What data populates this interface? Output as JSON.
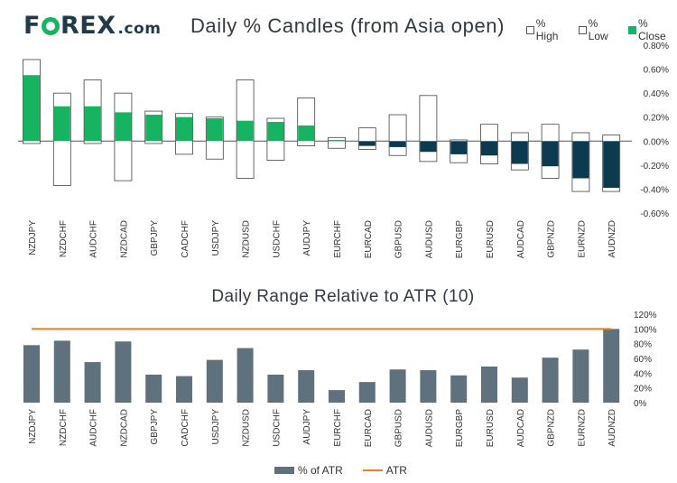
{
  "brand": {
    "logo_text_pre": "F",
    "logo_text_post": "REX",
    "logo_suffix": ".com"
  },
  "colors": {
    "green": "#16b460",
    "navy": "#0c3a4e",
    "bar": "#5f717c",
    "atr": "#f07f1e"
  },
  "legend_top": {
    "high": "% High",
    "low": "% Low",
    "close": "% Close"
  },
  "legend_bottom": {
    "bars": "% of ATR",
    "line": "ATR"
  },
  "chart_data": [
    {
      "type": "candlestick",
      "title": "Daily % Candles (from Asia open)",
      "categories": [
        "NZDJPY",
        "NZDCHF",
        "AUDCHF",
        "NZDCAD",
        "GBPJPY",
        "CADCHF",
        "USDJPY",
        "NZDUSD",
        "USDCHF",
        "AUDJPY",
        "EURCHF",
        "EURCAD",
        "GBPUSD",
        "AUDUSD",
        "EURGBP",
        "EURUSD",
        "AUDCAD",
        "GBPNZD",
        "EURNZD",
        "AUDNZD"
      ],
      "high": [
        0.68,
        0.4,
        0.51,
        0.4,
        0.25,
        0.23,
        0.2,
        0.51,
        0.19,
        0.36,
        0.03,
        0.11,
        0.22,
        0.38,
        0.01,
        0.14,
        0.07,
        0.14,
        0.07,
        0.05
      ],
      "low": [
        -0.02,
        -0.37,
        -0.02,
        -0.33,
        -0.02,
        -0.11,
        -0.15,
        -0.31,
        -0.16,
        -0.04,
        -0.06,
        -0.07,
        -0.12,
        -0.17,
        -0.18,
        -0.19,
        -0.24,
        -0.31,
        -0.42,
        -0.42
      ],
      "close": [
        0.55,
        0.29,
        0.29,
        0.24,
        0.22,
        0.2,
        0.19,
        0.17,
        0.16,
        0.13,
        0.01,
        -0.04,
        -0.05,
        -0.09,
        -0.11,
        -0.12,
        -0.19,
        -0.21,
        -0.31,
        -0.39
      ],
      "ylim": [
        -0.6,
        0.8
      ],
      "yticks": [
        "0.80%",
        "0.60%",
        "0.40%",
        "0.20%",
        "0.00%",
        "-0.20%",
        "-0.40%",
        "-0.60%"
      ],
      "ytick_values": [
        0.8,
        0.6,
        0.4,
        0.2,
        0,
        -0.2,
        -0.4,
        -0.6
      ]
    },
    {
      "type": "bar",
      "title": "Daily Range Relative to ATR (10)",
      "categories": [
        "NZDJPY",
        "NZDCHF",
        "AUDCHF",
        "NZDCAD",
        "GBPJPY",
        "CADCHF",
        "USDJPY",
        "NZDUSD",
        "USDCHF",
        "AUDJPY",
        "EURCHF",
        "EURCAD",
        "GBPUSD",
        "AUDUSD",
        "EURGBP",
        "EURUSD",
        "AUDCAD",
        "GBPNZD",
        "EURNZD",
        "AUDNZD"
      ],
      "series": [
        {
          "name": "% of ATR",
          "values": [
            78,
            84,
            55,
            83,
            38,
            36,
            58,
            74,
            38,
            44,
            17,
            28,
            45,
            44,
            37,
            49,
            34,
            61,
            72,
            100
          ]
        }
      ],
      "atr_line": 100,
      "ylim": [
        0,
        120
      ],
      "yticks": [
        "120%",
        "100%",
        "80%",
        "60%",
        "40%",
        "20%",
        "0%"
      ],
      "ytick_values": [
        120,
        100,
        80,
        60,
        40,
        20,
        0
      ]
    }
  ]
}
